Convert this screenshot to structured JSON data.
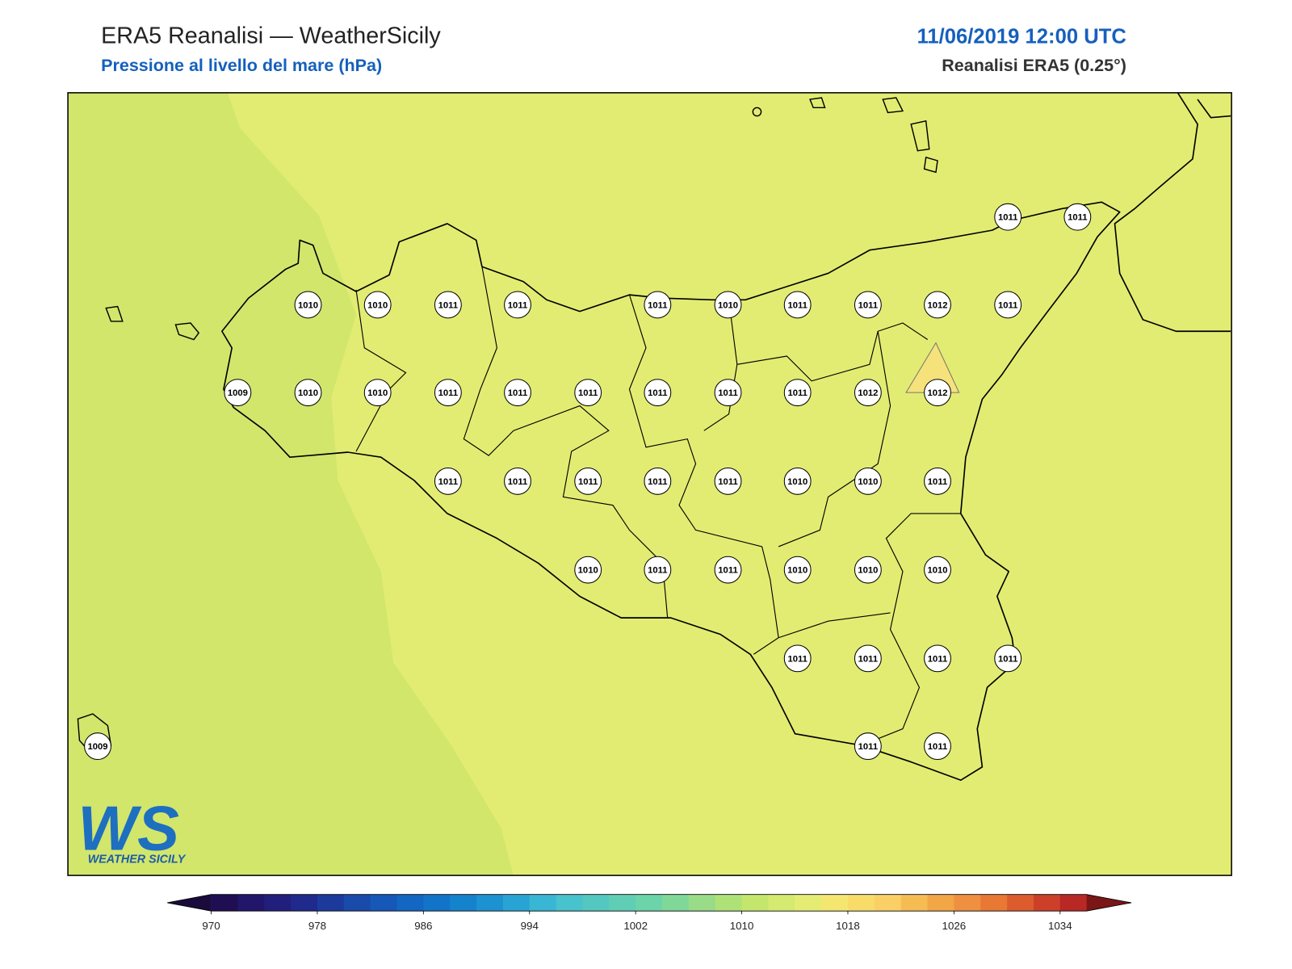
{
  "header": {
    "title": "ERA5 Reanalisi — WeatherSicily",
    "subtitle": "Pressione al livello del mare (hPa)",
    "datetime": "11/06/2019 12:00 UTC",
    "source": "Reanalisi ERA5 (0.25°)"
  },
  "stations": [
    1011,
    1011,
    1010,
    1010,
    1011,
    1011,
    1011,
    1010,
    1011,
    1011,
    1012,
    1011,
    1009,
    1010,
    1010,
    1011,
    1011,
    1011,
    1011,
    1011,
    1011,
    1012,
    1012,
    1011,
    1011,
    1011,
    1011,
    1011,
    1010,
    1010,
    1011,
    1010,
    1011,
    1011,
    1010,
    1010,
    1010,
    1011,
    1011,
    1011,
    1011,
    1009,
    1011,
    1011
  ],
  "logo": {
    "mark": "WS",
    "name": "WEATHER SICILY"
  },
  "colorbar": {
    "ticks": [
      970,
      978,
      986,
      994,
      1002,
      1010,
      1018,
      1026,
      1034
    ],
    "low_color": "#1a0b3c",
    "high_color": "#7a1616",
    "colors": [
      "#1f0f52",
      "#22166a",
      "#221e7c",
      "#1f2a8c",
      "#1b3a9c",
      "#1a4aaa",
      "#1558b8",
      "#1366c2",
      "#1274c8",
      "#1582cc",
      "#1c92d0",
      "#28a4d4",
      "#38b6d4",
      "#48c2cc",
      "#54c8c0",
      "#60ceb4",
      "#6cd4a8",
      "#80d898",
      "#98dc88",
      "#aee278",
      "#c4e66c",
      "#d4ea70",
      "#e4ec74",
      "#f4e670",
      "#f8dc6a",
      "#fad066",
      "#f6bc54",
      "#f2a646",
      "#ee9040",
      "#e87834",
      "#dc5c2e",
      "#cc402a",
      "#b82824"
    ]
  }
}
